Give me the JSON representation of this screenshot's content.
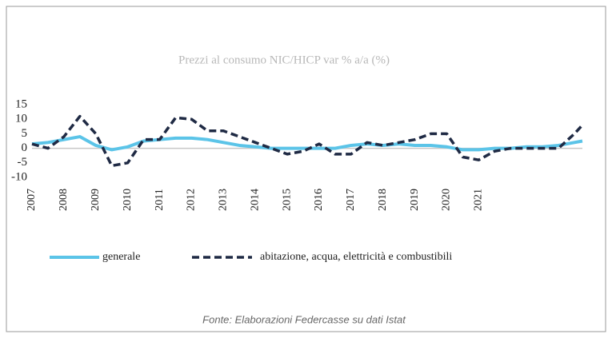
{
  "chart_data": {
    "type": "line",
    "title": "Prezzi al consumo NIC/HICP var % a/a (%)",
    "source": "Fonte: Elaborazioni Federcasse su dati Istat",
    "x": [
      2007,
      2007.5,
      2008,
      2008.5,
      2009,
      2009.5,
      2010,
      2010.5,
      2011,
      2011.5,
      2012,
      2012.5,
      2013,
      2013.5,
      2014,
      2014.5,
      2015,
      2015.5,
      2016,
      2016.5,
      2017,
      2017.5,
      2018,
      2018.5,
      2019,
      2019.5,
      2020,
      2020.5,
      2021,
      2021.5,
      2022,
      2022.5,
      2023,
      2023.5,
      2024,
      2024.25
    ],
    "series": [
      {
        "name": "generale",
        "color": "#5bc4e8",
        "dash": false,
        "values": [
          1.5,
          2,
          3,
          4,
          1,
          -0.5,
          0.5,
          2.5,
          3,
          3.5,
          3.5,
          3,
          2,
          1,
          0.5,
          0,
          0,
          0,
          0,
          0,
          1,
          1.5,
          1,
          1.5,
          1,
          1,
          0.5,
          -0.5,
          -0.5,
          0,
          0,
          0.5,
          0.5,
          1,
          2,
          2.5
        ]
      },
      {
        "name": "abitazione, acqua, elettricità e combustibili",
        "color": "#1f2a44",
        "dash": true,
        "values": [
          1.5,
          0,
          4,
          11,
          5,
          -6,
          -5,
          3,
          3,
          10.5,
          10,
          6,
          6,
          4,
          2,
          0,
          -2,
          -1,
          1.5,
          -2,
          -2,
          2,
          1,
          2,
          3,
          5,
          5,
          -3,
          -4,
          -1,
          0,
          0,
          0,
          0,
          5,
          8
        ]
      }
    ],
    "xlim": [
      2007,
      2024.25
    ],
    "xticks": [
      2007,
      2008,
      2009,
      2010,
      2011,
      2012,
      2013,
      2014,
      2015,
      2016,
      2017,
      2018,
      2019,
      2020,
      2021
    ],
    "ylim": [
      -10,
      15
    ],
    "yticks": [
      -10,
      -5,
      0,
      5,
      10,
      15
    ]
  }
}
